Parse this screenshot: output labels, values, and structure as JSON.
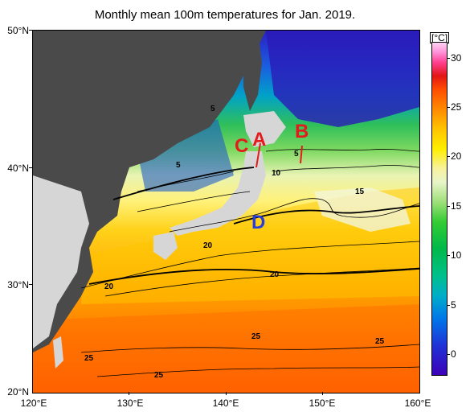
{
  "title": "Monthly mean 100m temperatures for Jan. 2019.",
  "lat_labels": [
    "50°N",
    "40°N",
    "30°N",
    "20°N"
  ],
  "lon_labels": [
    "120°E",
    "130°E",
    "140°E",
    "150°E",
    "160°E"
  ],
  "colorbar": {
    "unit": "[°C]",
    "ticks": [
      "30",
      "25",
      "20",
      "15",
      "10",
      "5",
      "0"
    ],
    "range": [
      -2,
      32
    ]
  },
  "contour_labels": {
    "c1": "5",
    "c2": "5",
    "c3": "5",
    "c4": "10",
    "c5": "15",
    "c6": "20",
    "c7": "20",
    "c8": "20",
    "c9": "25",
    "c10": "25",
    "c11": "25",
    "c12": "25"
  },
  "markers": {
    "A": "A",
    "B": "B",
    "C": "C",
    "D": "D"
  },
  "colors": {
    "marker_red": "#e41a1c",
    "marker_blue": "#2b3fd6",
    "land": "#4a4a4a",
    "land_light": "#d6d6d6"
  }
}
